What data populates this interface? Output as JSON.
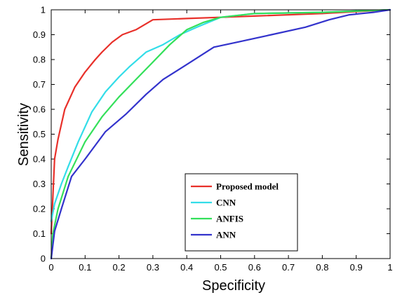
{
  "chart_data": {
    "type": "line",
    "title": "",
    "xlabel": "Specificity",
    "ylabel": "Sensitivity",
    "xlim": [
      0,
      1
    ],
    "ylim": [
      0,
      1
    ],
    "x_ticks": [
      "0",
      "0.1",
      "0.2",
      "0.3",
      "0.4",
      "0.5",
      "0.6",
      "0.7",
      "0.8",
      "0.9",
      "1"
    ],
    "y_ticks": [
      "0",
      "0.1",
      "0.2",
      "0.3",
      "0.4",
      "0.5",
      "0.6",
      "0.7",
      "0.8",
      "0.9",
      "1"
    ],
    "grid": false,
    "legend_position": "lower-center",
    "series": [
      {
        "name": "Proposed model",
        "color": "#e8302a",
        "x": [
          0,
          0.005,
          0.01,
          0.02,
          0.04,
          0.07,
          0.1,
          0.13,
          0.15,
          0.18,
          0.21,
          0.25,
          0.3,
          0.4,
          0.5,
          0.6,
          0.8,
          1.0
        ],
        "y": [
          0.1,
          0.25,
          0.4,
          0.48,
          0.6,
          0.69,
          0.75,
          0.8,
          0.83,
          0.87,
          0.9,
          0.92,
          0.96,
          0.965,
          0.97,
          0.975,
          0.985,
          1.0
        ]
      },
      {
        "name": "CNN",
        "color": "#33dde8",
        "x": [
          0,
          0.01,
          0.03,
          0.05,
          0.08,
          0.12,
          0.16,
          0.2,
          0.23,
          0.28,
          0.33,
          0.38,
          0.43,
          0.5,
          0.6,
          0.8,
          1.0
        ],
        "y": [
          0.15,
          0.22,
          0.3,
          0.37,
          0.47,
          0.59,
          0.67,
          0.73,
          0.77,
          0.83,
          0.86,
          0.9,
          0.93,
          0.97,
          0.985,
          0.99,
          1.0
        ]
      },
      {
        "name": "ANFIS",
        "color": "#33e05a",
        "x": [
          0,
          0.005,
          0.02,
          0.05,
          0.1,
          0.15,
          0.2,
          0.25,
          0.3,
          0.35,
          0.4,
          0.45,
          0.5,
          0.6,
          0.8,
          1.0
        ],
        "y": [
          0,
          0.1,
          0.2,
          0.33,
          0.47,
          0.57,
          0.65,
          0.72,
          0.79,
          0.86,
          0.92,
          0.95,
          0.97,
          0.985,
          0.99,
          1.0
        ]
      },
      {
        "name": "ANN",
        "color": "#3333cc",
        "x": [
          0,
          0.01,
          0.03,
          0.06,
          0.1,
          0.16,
          0.22,
          0.28,
          0.33,
          0.4,
          0.48,
          0.55,
          0.65,
          0.75,
          0.82,
          0.88,
          0.95,
          1.0
        ],
        "y": [
          0,
          0.11,
          0.2,
          0.33,
          0.4,
          0.51,
          0.58,
          0.66,
          0.72,
          0.78,
          0.85,
          0.87,
          0.9,
          0.93,
          0.96,
          0.98,
          0.99,
          1.0
        ]
      }
    ]
  }
}
